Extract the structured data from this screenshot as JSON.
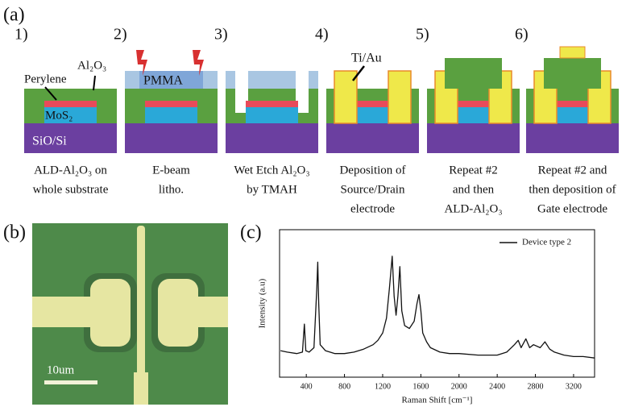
{
  "panels": {
    "a": {
      "label": "(a)",
      "steps": [
        {
          "number": "1)",
          "caption": [
            "ALD-Al₂O₃ on",
            "whole substrate"
          ]
        },
        {
          "number": "2)",
          "caption": [
            "E-beam",
            "litho."
          ]
        },
        {
          "number": "3)",
          "caption": [
            "Wet Etch Al₂O₃",
            "by TMAH"
          ]
        },
        {
          "number": "4)",
          "caption": [
            "Deposition of",
            "Source/Drain",
            "electrode"
          ]
        },
        {
          "number": "5)",
          "caption": [
            "Repeat #2",
            "and then",
            "ALD-Al₂O₃"
          ]
        },
        {
          "number": "6)",
          "caption": [
            "Repeat #2 and",
            "then deposition of",
            "Gate electrode"
          ]
        }
      ],
      "layer_labels": {
        "al2o3": "Al₂O₃",
        "perylene": "Perylene",
        "mos2": "MoS₂",
        "substrate": "SiO/Si",
        "pmma": "PMMA",
        "electrode": "Ti/Au"
      }
    },
    "b": {
      "label": "(b)",
      "scale_bar": "10um"
    },
    "c": {
      "label": "(c)"
    }
  },
  "chart_data": {
    "type": "line",
    "x_label": "Raman Shift [cm⁻¹]",
    "y_label": "Intensity (a.u)",
    "legend": "upper right",
    "x": [
      130,
      200,
      300,
      360,
      380,
      395,
      430,
      480,
      510,
      520,
      530,
      545,
      600,
      700,
      800,
      900,
      1000,
      1100,
      1150,
      1200,
      1240,
      1270,
      1300,
      1320,
      1340,
      1360,
      1380,
      1400,
      1430,
      1480,
      1530,
      1560,
      1580,
      1600,
      1620,
      1660,
      1700,
      1800,
      1900,
      2000,
      2200,
      2400,
      2500,
      2580,
      2620,
      2650,
      2700,
      2740,
      2780,
      2850,
      2900,
      2950,
      3000,
      3100,
      3200,
      3300,
      3420
    ],
    "series": [
      {
        "name": "Device type 2",
        "color": "#111111",
        "values": [
          18,
          17,
          16,
          17,
          36,
          18,
          17,
          20,
          60,
          78,
          50,
          22,
          18,
          16,
          16,
          17,
          19,
          22,
          25,
          30,
          40,
          60,
          82,
          55,
          42,
          55,
          75,
          45,
          35,
          33,
          38,
          50,
          56,
          45,
          30,
          24,
          20,
          17,
          16,
          16,
          15,
          15,
          17,
          22,
          25,
          20,
          26,
          20,
          22,
          20,
          24,
          19,
          17,
          15,
          14,
          14,
          13
        ]
      }
    ],
    "xlim": [
      120,
      3420
    ],
    "xticks": [
      400,
      800,
      1200,
      1600,
      2000,
      2400,
      2800,
      3200
    ],
    "ylim": [
      0,
      100
    ]
  }
}
